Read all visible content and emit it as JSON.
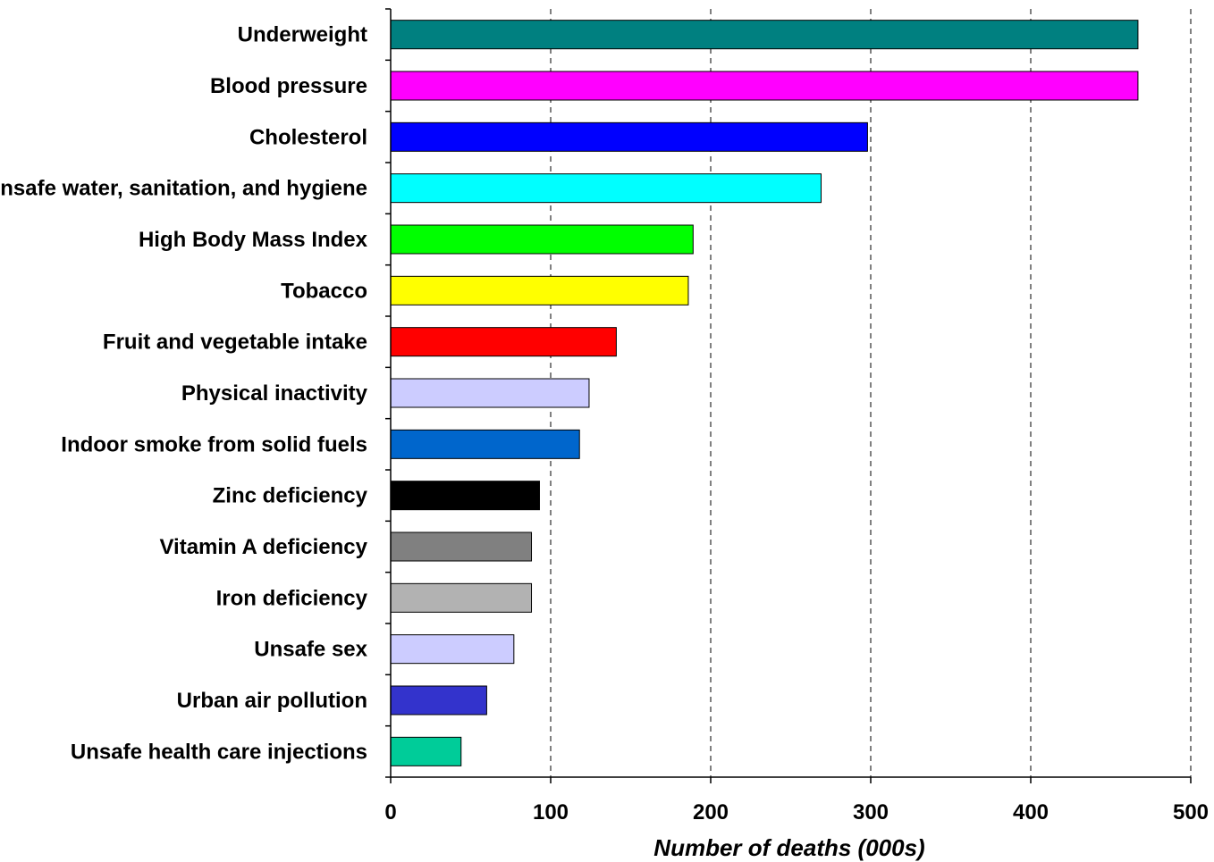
{
  "chart_data": {
    "type": "bar",
    "orientation": "horizontal",
    "categories": [
      "Underweight",
      "Blood pressure",
      "Cholesterol",
      "Unsafe water, sanitation, and hygiene",
      "High Body Mass Index",
      "Tobacco",
      "Fruit and vegetable intake",
      "Physical inactivity",
      "Indoor smoke from solid fuels",
      "Zinc deficiency",
      "Vitamin A deficiency",
      "Iron deficiency",
      "Unsafe sex",
      "Urban air pollution",
      "Unsafe health care injections"
    ],
    "values": [
      467,
      467,
      298,
      269,
      189,
      186,
      141,
      124,
      118,
      93,
      88,
      88,
      77,
      60,
      44
    ],
    "colors": [
      "#008080",
      "#FF00FF",
      "#0000FF",
      "#00FFFF",
      "#00FF00",
      "#FFFF00",
      "#FF0000",
      "#CCCCFF",
      "#0066CC",
      "#000000",
      "#808080",
      "#B2B2B2",
      "#CCCCFF",
      "#3333CC",
      "#00CC99"
    ],
    "xlabel": "Number of deaths (000s)",
    "ylabel": "",
    "title": "",
    "xlim": [
      0,
      500
    ],
    "xticks": [
      "0",
      "100",
      "200",
      "300",
      "400",
      "500"
    ],
    "grid": "vertical dashed"
  }
}
